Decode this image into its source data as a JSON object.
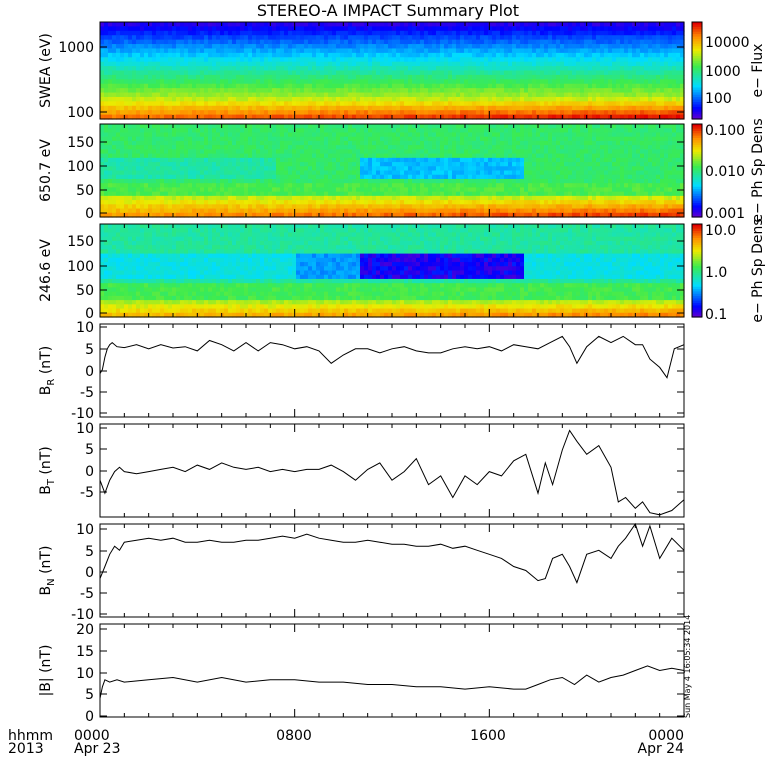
{
  "title": "STEREO-A IMPACT Summary Plot",
  "stamp": "Sun May  4 16:05:34 2014",
  "x_axis": {
    "ticks": [
      {
        "hour": 0,
        "label1": "0000",
        "label2": "Apr 23"
      },
      {
        "hour": 8,
        "label1": "0800",
        "label2": ""
      },
      {
        "hour": 16,
        "label1": "1600",
        "label2": ""
      },
      {
        "hour": 24,
        "label1": "0000",
        "label2": "Apr 24"
      }
    ],
    "left_label1": "hhmm",
    "left_label2": "2013",
    "minor_step_hours": 1
  },
  "chart_data": [
    {
      "type": "heatmap",
      "name": "swea",
      "ylabel": "SWEA (eV)",
      "ytick_labels": [
        "1000",
        "100"
      ],
      "ylog": true,
      "ylim": [
        90,
        2200
      ],
      "colorbar": {
        "label": "e− Flux",
        "tick_labels": [
          "10000",
          "1000",
          "100"
        ],
        "range_log": [
          1,
          4.45
        ]
      },
      "pattern": "blue band at top, cyan/green mid, yellow-orange-red at bottom; red intensifies toward end of day"
    },
    {
      "type": "heatmap",
      "name": "pad650",
      "ylabel": "650.7 eV",
      "ytick_labels": [
        "0",
        "50",
        "100",
        "150"
      ],
      "ylim": [
        0,
        180
      ],
      "colorbar": {
        "label": "e− Ph Sp Dens",
        "tick_labels": [
          "0.100",
          "0.010",
          "0.001"
        ],
        "range_log": [
          -3,
          -1
        ]
      },
      "pattern": "green field with cyan depletion near 90 deg, orange/red band near 0-20 deg"
    },
    {
      "type": "heatmap",
      "name": "pad246",
      "ylabel": "246.6 eV",
      "ytick_labels": [
        "0",
        "50",
        "100",
        "150"
      ],
      "ylim": [
        0,
        180
      ],
      "colorbar": {
        "label": "e− Ph Sp Dens",
        "tick_labels": [
          "10.0",
          "1.0",
          "0.1"
        ],
        "range_log": [
          -1,
          1
        ]
      },
      "pattern": "cyan/green with strong blue/purple depletion near 90 deg from ~1100 to ~1800"
    },
    {
      "type": "line",
      "name": "br",
      "ylabel_main": "B",
      "ylabel_sub": "R",
      "ylabel_unit": " (nT)",
      "ytick_labels": [
        "10",
        "5",
        "0",
        "-5",
        "-10"
      ],
      "ylim": [
        -12,
        10.5
      ],
      "x": [
        0,
        0.1,
        0.2,
        0.3,
        0.4,
        0.5,
        0.7,
        1,
        1.5,
        2,
        2.5,
        3,
        3.5,
        4,
        4.5,
        5,
        5.5,
        6,
        6.5,
        7,
        7.5,
        8,
        8.5,
        9,
        9.5,
        10,
        10.5,
        11,
        11.5,
        12,
        12.5,
        13,
        13.5,
        14,
        14.5,
        15,
        15.5,
        16,
        16.5,
        17,
        17.5,
        18,
        18.5,
        19,
        19.3,
        19.6,
        20,
        20.5,
        21,
        21.5,
        22,
        22.3,
        22.6,
        23,
        23.3,
        23.6,
        24
      ],
      "y": [
        -1.5,
        -0.5,
        2.5,
        4.5,
        5.5,
        6,
        5,
        4.8,
        5.5,
        4.5,
        5.5,
        4.7,
        5,
        4,
        6.5,
        5.5,
        4,
        6,
        4,
        6,
        5.5,
        4.5,
        5,
        4,
        1,
        3,
        4.5,
        4.5,
        3.5,
        4.5,
        5,
        4,
        3.5,
        3.5,
        4.5,
        5,
        4.5,
        5,
        4,
        5.5,
        5,
        4.5,
        6,
        7.5,
        5,
        1,
        5,
        7.5,
        6,
        7.5,
        5.5,
        5.5,
        2,
        0,
        -2.5,
        4.5,
        5.5
      ]
    },
    {
      "type": "line",
      "name": "bt",
      "ylabel_main": "B",
      "ylabel_sub": "T",
      "ylabel_unit": " (nT)",
      "ytick_labels": [
        "10",
        "5",
        "0",
        "-5"
      ],
      "ylim": [
        -10.5,
        11
      ],
      "x": [
        0,
        0.2,
        0.4,
        0.6,
        0.8,
        1,
        1.5,
        2,
        2.5,
        3,
        3.5,
        4,
        4.5,
        5,
        5.5,
        6,
        6.5,
        7,
        7.5,
        8,
        8.5,
        9,
        9.5,
        10,
        10.5,
        11,
        11.5,
        12,
        12.5,
        13,
        13.5,
        14,
        14.5,
        15,
        15.5,
        16,
        16.5,
        17,
        17.5,
        18,
        18.3,
        18.6,
        19,
        19.3,
        19.6,
        20,
        20.5,
        21,
        21.3,
        21.6,
        22,
        22.3,
        22.6,
        23,
        23.5,
        24
      ],
      "y": [
        -2,
        -5,
        -2,
        0,
        1,
        0,
        -0.5,
        0,
        0.5,
        1,
        0,
        1.5,
        0.5,
        2,
        1,
        0.5,
        1,
        0,
        0.5,
        0,
        0.5,
        0.5,
        1.5,
        0,
        -2,
        0.5,
        2,
        -2,
        0,
        3,
        -3,
        -1,
        -6,
        -1,
        -3,
        0,
        -1,
        2.5,
        4,
        -5,
        2,
        -3,
        5,
        9.5,
        7,
        4,
        6,
        1,
        -7,
        -6,
        -8.5,
        -7,
        -9.5,
        -10,
        -9,
        -6.5
      ]
    },
    {
      "type": "line",
      "name": "bn",
      "ylabel_main": "B",
      "ylabel_sub": "N",
      "ylabel_unit": " (nT)",
      "ytick_labels": [
        "10",
        "5",
        "0",
        "-5",
        "-10"
      ],
      "ylim": [
        -12.5,
        10.5
      ],
      "x": [
        0,
        0.2,
        0.4,
        0.6,
        0.8,
        1,
        1.5,
        2,
        2.5,
        3,
        3.5,
        4,
        4.5,
        5,
        5.5,
        6,
        6.5,
        7,
        7.5,
        8,
        8.5,
        9,
        9.5,
        10,
        10.5,
        11,
        11.5,
        12,
        12.5,
        13,
        13.5,
        14,
        14.5,
        15,
        15.5,
        16,
        16.5,
        17,
        17.5,
        18,
        18.3,
        18.6,
        19,
        19.3,
        19.6,
        20,
        20.5,
        21,
        21.3,
        21.6,
        22,
        22.3,
        22.6,
        23,
        23.5,
        24
      ],
      "y": [
        -3,
        0,
        3,
        5,
        4,
        6,
        6.5,
        7,
        6.5,
        7,
        6,
        6,
        6.5,
        6,
        6,
        6.5,
        6.5,
        7,
        7.5,
        7,
        8,
        7,
        6.5,
        6,
        6,
        6.5,
        6,
        5.5,
        5.5,
        5,
        5,
        5.5,
        4.5,
        5,
        4,
        3,
        2,
        0,
        -1,
        -3.5,
        -3,
        2,
        3,
        0,
        -4,
        3,
        4,
        2,
        5,
        7,
        10.5,
        5,
        10,
        2,
        7,
        4
      ]
    },
    {
      "type": "line",
      "name": "bmag",
      "ylabel": "|B| (nT)",
      "ytick_labels": [
        "20",
        "15",
        "10",
        "5",
        "0"
      ],
      "ylim": [
        0,
        20
      ],
      "x": [
        0,
        0.1,
        0.2,
        0.4,
        0.7,
        1,
        2,
        3,
        4,
        5,
        6,
        7,
        8,
        9,
        10,
        11,
        12,
        13,
        14,
        15,
        16,
        17,
        17.5,
        18,
        18.5,
        19,
        19.5,
        20,
        20.5,
        21,
        21.5,
        22,
        22.5,
        23,
        23.5,
        24
      ],
      "y": [
        4,
        6.5,
        8,
        7.5,
        8,
        7.5,
        8,
        8.5,
        7.5,
        8.5,
        7.5,
        8,
        8,
        7.5,
        7.5,
        7,
        7,
        6.5,
        6.5,
        6,
        6.5,
        6,
        6,
        7,
        8,
        8.5,
        7,
        9,
        7.5,
        8.5,
        9,
        10,
        11,
        10,
        10.5,
        10
      ]
    }
  ]
}
